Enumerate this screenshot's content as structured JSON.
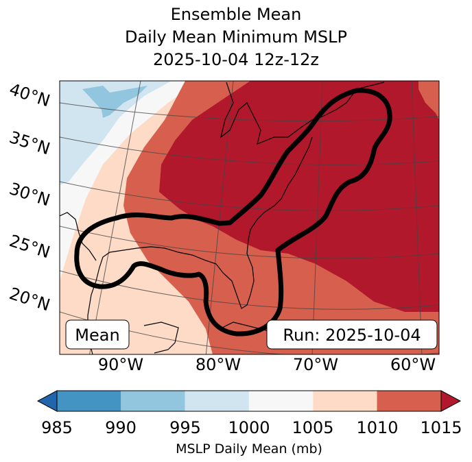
{
  "title": {
    "line1": "Ensemble Mean",
    "line2": "Daily Mean Minimum MSLP",
    "line3": "2025-10-04 12z-12z"
  },
  "map": {
    "lat_labels": [
      "40°N",
      "35°N",
      "30°N",
      "25°N",
      "20°N"
    ],
    "lon_labels": [
      "90°W",
      "80°W",
      "70°W",
      "60°W"
    ],
    "mean_box": "Mean",
    "run_box": "Run: 2025-10-04"
  },
  "colorbar": {
    "ticks": [
      "985",
      "990",
      "995",
      "1000",
      "1005",
      "1010",
      "1015"
    ],
    "label": "MSLP Daily Mean (mb)",
    "colors": {
      "under": "#2166ac",
      "b985": "#4393c3",
      "b990": "#92c5de",
      "b995": "#d1e5f0",
      "b1000": "#f7f7f7",
      "b1005": "#fddbc7",
      "b1010": "#d6604d",
      "over": "#b2182b"
    }
  }
}
